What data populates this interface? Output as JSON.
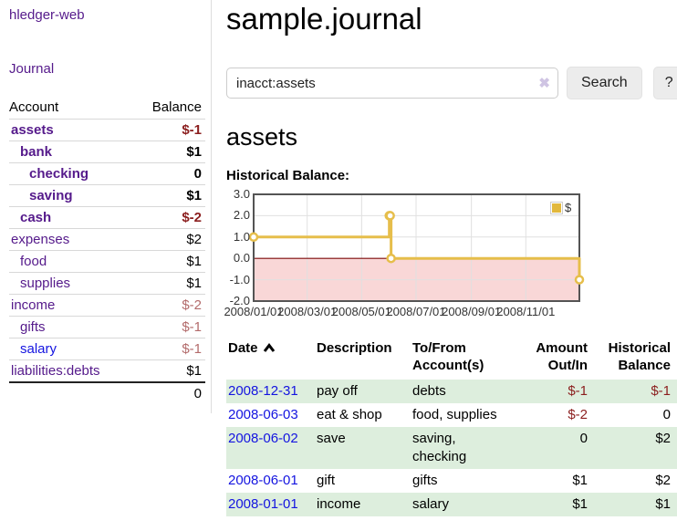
{
  "app": {
    "title": "hledger-web",
    "nav_journal": "Journal"
  },
  "colors": {
    "link_purple": "#551A8B",
    "link_blue": "#1414E0",
    "negative_strong": "#8B1E1E",
    "negative_muted": "#B36B6B",
    "row_green": "#DDEEDD",
    "series_gold": "#E6BE4B",
    "legend_gold": "#E2B83C",
    "negative_region_pink": "#F9D7D7",
    "zero_line_red": "#7D0A0A",
    "chart_border": "#545454",
    "grid": "#E0E0E0"
  },
  "sidebar": {
    "accounts_header": {
      "account": "Account",
      "balance": "Balance"
    },
    "accounts": [
      {
        "name": "assets",
        "balance": "$-1",
        "depth": 1,
        "bold": true,
        "balance_style": "neg-strong",
        "link_color": "purple"
      },
      {
        "name": "bank",
        "balance": "$1",
        "depth": 2,
        "bold": true,
        "balance_style": "pos",
        "link_color": "purple"
      },
      {
        "name": "checking",
        "balance": "0",
        "depth": 3,
        "bold": true,
        "balance_style": "pos",
        "link_color": "purple"
      },
      {
        "name": "saving",
        "balance": "$1",
        "depth": 3,
        "bold": true,
        "balance_style": "pos",
        "link_color": "purple"
      },
      {
        "name": "cash",
        "balance": "$-2",
        "depth": 2,
        "bold": true,
        "balance_style": "neg-strong",
        "link_color": "purple"
      },
      {
        "name": "expenses",
        "balance": "$2",
        "depth": 1,
        "bold": false,
        "balance_style": "pos",
        "link_color": "purple"
      },
      {
        "name": "food",
        "balance": "$1",
        "depth": 2,
        "bold": false,
        "balance_style": "pos",
        "link_color": "purple"
      },
      {
        "name": "supplies",
        "balance": "$1",
        "depth": 2,
        "bold": false,
        "balance_style": "pos",
        "link_color": "purple"
      },
      {
        "name": "income",
        "balance": "$-2",
        "depth": 1,
        "bold": false,
        "balance_style": "neg-muted",
        "link_color": "purple"
      },
      {
        "name": "gifts",
        "balance": "$-1",
        "depth": 2,
        "bold": false,
        "balance_style": "neg-muted",
        "link_color": "purple"
      },
      {
        "name": "salary",
        "balance": "$-1",
        "depth": 2,
        "bold": false,
        "balance_style": "neg-muted",
        "link_color": "blue"
      },
      {
        "name": "liabilities:debts",
        "balance": "$1",
        "depth": 1,
        "bold": false,
        "balance_style": "pos",
        "link_color": "purple"
      }
    ],
    "total": "0"
  },
  "header": {
    "title": "sample.journal"
  },
  "search": {
    "value": "inacct:assets",
    "clear_icon": "✖",
    "button_label": "Search",
    "help_label": "?"
  },
  "account_page": {
    "title": "assets",
    "chart_heading": "Historical Balance:"
  },
  "chart_data": {
    "type": "line",
    "step": true,
    "title": "Historical Balance:",
    "series": [
      {
        "name": "$",
        "x_dates": [
          "2008-01-01",
          "2008-06-01",
          "2008-06-02",
          "2008-06-03",
          "2008-12-31"
        ],
        "x_days": [
          0,
          152,
          153,
          154,
          365
        ],
        "values": [
          1,
          2,
          2,
          0,
          -1
        ]
      }
    ],
    "ylim": [
      -2,
      3
    ],
    "yticks": [
      3.0,
      2.0,
      1.0,
      0.0,
      -1.0,
      -2.0
    ],
    "xticks": [
      {
        "label": "2008/01/01",
        "day": 0
      },
      {
        "label": "2008/03/01",
        "day": 60
      },
      {
        "label": "2008/05/01",
        "day": 121
      },
      {
        "label": "2008/07/01",
        "day": 182
      },
      {
        "label": "2008/09/01",
        "day": 244
      },
      {
        "label": "2008/11/01",
        "day": 305
      }
    ],
    "xlim_days": [
      0,
      365
    ],
    "grid": true,
    "negative_region_shaded": true,
    "legend": {
      "label": "$",
      "position": "top-right"
    }
  },
  "transactions": {
    "columns": [
      {
        "label": "Date",
        "sorted": "asc"
      },
      {
        "label": "Description"
      },
      {
        "label": "To/From Account(s)"
      },
      {
        "label": "Amount Out/In",
        "align": "right"
      },
      {
        "label": "Historical Balance",
        "align": "right"
      }
    ],
    "rows": [
      {
        "date": "2008-12-31",
        "description": "pay off",
        "accounts": "debts",
        "amount": "$-1",
        "amount_negative": true,
        "balance": "$-1",
        "balance_negative": true
      },
      {
        "date": "2008-06-03",
        "description": "eat & shop",
        "accounts": "food, supplies",
        "amount": "$-2",
        "amount_negative": true,
        "balance": "0",
        "balance_negative": false
      },
      {
        "date": "2008-06-02",
        "description": "save",
        "accounts": "saving, checking",
        "amount": "0",
        "amount_negative": false,
        "balance": "$2",
        "balance_negative": false
      },
      {
        "date": "2008-06-01",
        "description": "gift",
        "accounts": "gifts",
        "amount": "$1",
        "amount_negative": false,
        "balance": "$2",
        "balance_negative": false
      },
      {
        "date": "2008-01-01",
        "description": "income",
        "accounts": "salary",
        "amount": "$1",
        "amount_negative": false,
        "balance": "$1",
        "balance_negative": false
      }
    ]
  }
}
